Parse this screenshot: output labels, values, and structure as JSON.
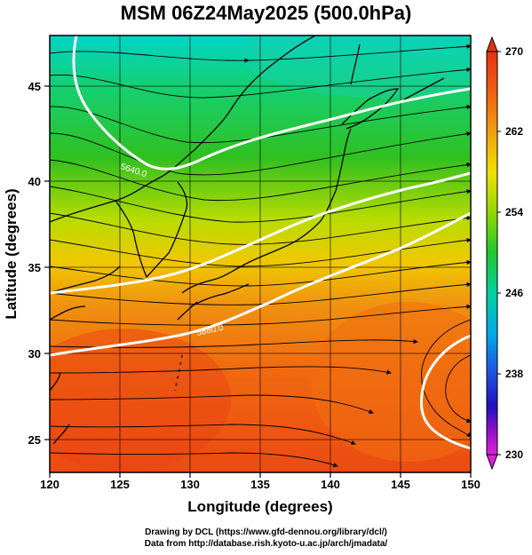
{
  "title": "MSM 06Z24May2025 (500.0hPa)",
  "xlabel": "Longitude (degrees)",
  "ylabel": "Latitude  (degrees)",
  "x_ticks": [
    "120",
    "125",
    "130",
    "135",
    "140",
    "145",
    "150"
  ],
  "y_ticks": [
    "25",
    "30",
    "35",
    "40",
    "45"
  ],
  "colorbar_ticks": [
    "270",
    "262",
    "254",
    "246",
    "238",
    "230"
  ],
  "contour_labels": [
    "5640.0",
    "5880.0"
  ],
  "credits": [
    "Drawing by DCL (https://www.gfd-dennou.org/library/dcl/)",
    "Data from http://database.rish.kyoto-u.ac.jp/arch/jmadata/"
  ],
  "colors": {
    "cold": "#00d8d0",
    "cool": "#22c832",
    "mild": "#c8e000",
    "warm": "#f0a010",
    "hot": "#f06010",
    "hottest": "#e83a10",
    "contour": "#ffffff"
  },
  "chart_data": {
    "type": "heatmap",
    "xlim": [
      120,
      150
    ],
    "ylim": [
      22.5,
      48
    ],
    "field": "temperature",
    "colorbar_range": [
      230,
      270
    ],
    "grid": true
  }
}
